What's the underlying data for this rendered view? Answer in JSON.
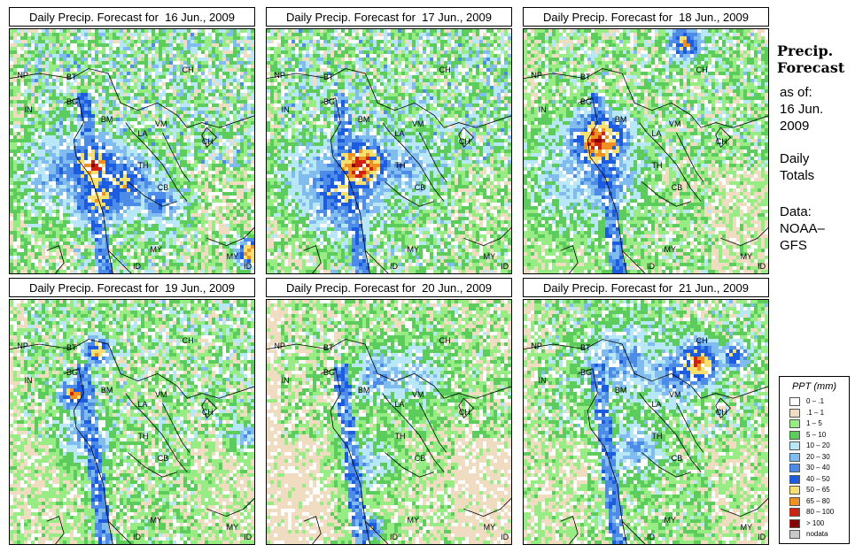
{
  "panels": [
    {
      "title": "Daily Precip. Forecast for  16 Jun., 2009",
      "date": "16 Jun.",
      "intensity": 3
    },
    {
      "title": "Daily Precip. Forecast for  17 Jun., 2009",
      "date": "17 Jun.",
      "intensity": 3
    },
    {
      "title": "Daily Precip. Forecast for  18 Jun., 2009",
      "date": "18 Jun.",
      "intensity": 2
    },
    {
      "title": "Daily Precip. Forecast for  19 Jun., 2009",
      "date": "19 Jun.",
      "intensity": 2
    },
    {
      "title": "Daily Precip. Forecast for  20 Jun., 2009",
      "date": "20 Jun.",
      "intensity": 1
    },
    {
      "title": "Daily Precip. Forecast for  21 Jun., 2009",
      "date": "21 Jun.",
      "intensity": 2
    }
  ],
  "country_labels": [
    "NP",
    "BT",
    "IN",
    "BG",
    "BM",
    "CH",
    "VM",
    "LA",
    "TH",
    "CB",
    "CH",
    "MY",
    "MY",
    "ID",
    "ID"
  ],
  "sidebar": {
    "title_line1": "Precip.",
    "title_line2": "Forecast",
    "asof_line1": "as of:",
    "asof_line2": "16 Jun.",
    "asof_line3": "2009",
    "totals_line1": "Daily",
    "totals_line2": "Totals",
    "data_line1": "Data:",
    "data_line2": "NOAA–",
    "data_line3": "GFS"
  },
  "legend": {
    "title": "PPT (mm)",
    "items": [
      {
        "label": "0 – .1",
        "color": "#ffffff"
      },
      {
        "label": ".1 – 1",
        "color": "#f0dcc0"
      },
      {
        "label": "1 – 5",
        "color": "#98ec84"
      },
      {
        "label": "5 – 10",
        "color": "#5ccc5c"
      },
      {
        "label": "10 – 20",
        "color": "#b8e8f8"
      },
      {
        "label": "20 – 30",
        "color": "#80bcf0"
      },
      {
        "label": "30 – 40",
        "color": "#4c8ce8"
      },
      {
        "label": "40 – 50",
        "color": "#1c5ce0"
      },
      {
        "label": "50 – 65",
        "color": "#f8e070"
      },
      {
        "label": "65 – 80",
        "color": "#f09020"
      },
      {
        "label": "80 – 100",
        "color": "#d02010"
      },
      {
        "label": "> 100",
        "color": "#880000"
      },
      {
        "label": "nodata",
        "color": "#c8c8c8"
      }
    ]
  }
}
